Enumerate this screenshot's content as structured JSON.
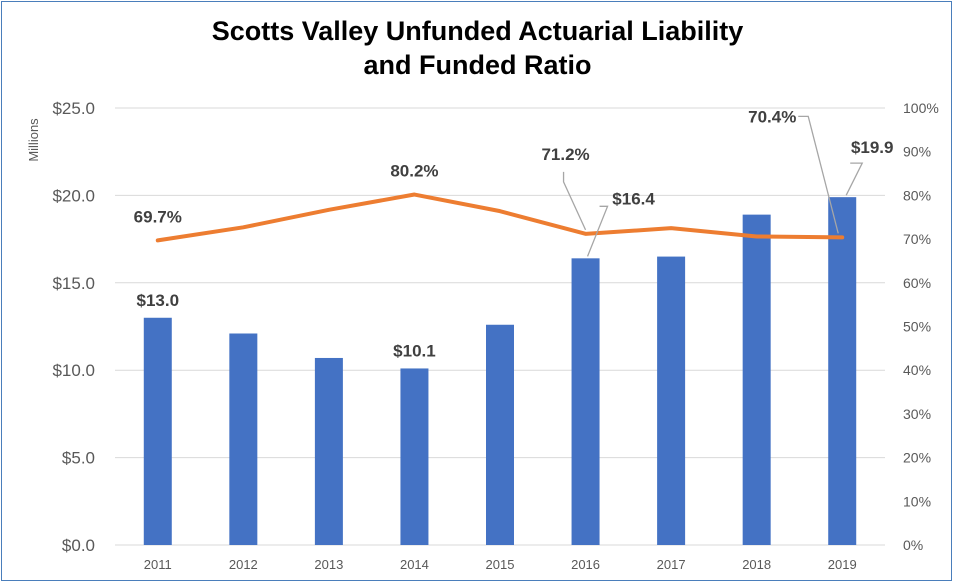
{
  "chart_data": {
    "type": "bar",
    "title_line1": "Scotts Valley Unfunded Actuarial Liability",
    "title_line2": "and Funded Ratio",
    "ylabel": "Millions",
    "categories": [
      "2011",
      "2012",
      "2013",
      "2014",
      "2015",
      "2016",
      "2017",
      "2018",
      "2019"
    ],
    "series": [
      {
        "type": "bar",
        "axis": "left",
        "color": "#4472c4",
        "values": [
          13.0,
          12.1,
          10.7,
          10.1,
          12.6,
          16.4,
          16.5,
          18.9,
          19.9
        ]
      },
      {
        "type": "line",
        "axis": "right",
        "color": "#ed7d31",
        "values": [
          69.7,
          72.7,
          76.7,
          80.2,
          76.4,
          71.2,
          72.5,
          70.6,
          70.4
        ]
      }
    ],
    "ylim": [
      0,
      25
    ],
    "y2lim": [
      0,
      100
    ],
    "y_ticks": [
      "$0.0",
      "$5.0",
      "$10.0",
      "$15.0",
      "$20.0",
      "$25.0"
    ],
    "y2_ticks": [
      "0%",
      "10%",
      "20%",
      "30%",
      "40%",
      "50%",
      "60%",
      "70%",
      "80%",
      "90%",
      "100%"
    ],
    "bar_labels": [
      {
        "index": 0,
        "text": "$13.0"
      },
      {
        "index": 3,
        "text": "$10.1"
      },
      {
        "index": 5,
        "text": "$16.4"
      },
      {
        "index": 8,
        "text": "$19.9"
      }
    ],
    "line_labels": [
      {
        "index": 0,
        "text": "69.7%"
      },
      {
        "index": 3,
        "text": "80.2%"
      },
      {
        "index": 5,
        "text": "71.2%"
      },
      {
        "index": 8,
        "text": "70.4%"
      }
    ],
    "grid": true,
    "legend": "none",
    "colors": {
      "bar": "#4472c4",
      "line": "#ed7d31",
      "grid": "#d9d9d9",
      "frame": "#4a7ebb"
    }
  }
}
